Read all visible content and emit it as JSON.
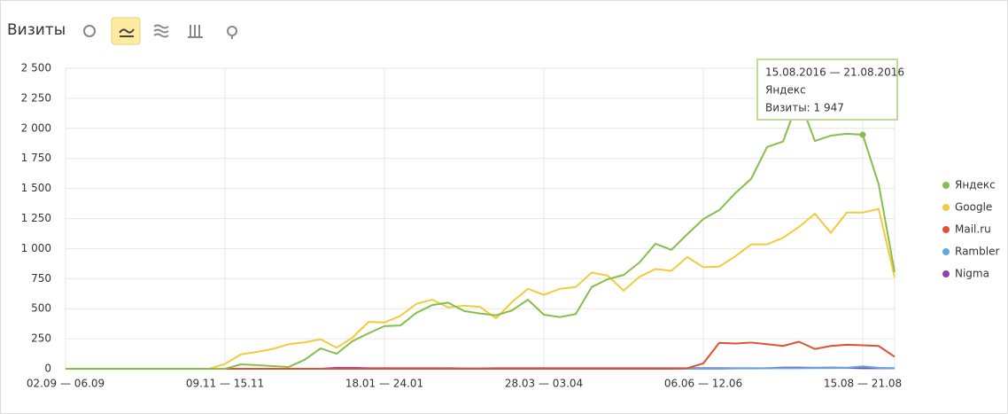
{
  "chart_data": {
    "type": "line",
    "title": "Визиты",
    "categories": [
      "02.09 — 06.09",
      null,
      null,
      null,
      null,
      null,
      null,
      null,
      null,
      null,
      "09.11 — 15.11",
      null,
      null,
      null,
      null,
      null,
      null,
      null,
      null,
      null,
      "18.01 — 24.01",
      null,
      null,
      null,
      null,
      null,
      null,
      null,
      null,
      null,
      "28.03 — 03.04",
      null,
      null,
      null,
      null,
      null,
      null,
      null,
      null,
      null,
      "06.06 — 12.06",
      null,
      null,
      null,
      null,
      null,
      null,
      null,
      null,
      null,
      "15.08 — 21.08",
      null,
      null
    ],
    "ylim": [
      0,
      2500
    ],
    "yticks": [
      0,
      250,
      500,
      750,
      {
        "value": 1000,
        "label": "1 000"
      },
      {
        "value": 1250,
        "label": "1 250"
      },
      {
        "value": 1500,
        "label": "1 500"
      },
      {
        "value": 1750,
        "label": "1 750"
      },
      {
        "value": 2000,
        "label": "2 000"
      },
      {
        "value": 2250,
        "label": "2 250"
      },
      {
        "value": 2500,
        "label": "2 500"
      }
    ],
    "grid": true,
    "legend": "right",
    "series": [
      {
        "name": "Яндекс",
        "color": "#86bf4b",
        "values": [
          0,
          0,
          0,
          0,
          0,
          0,
          0,
          0,
          0,
          0,
          0,
          37,
          30,
          22,
          15,
          75,
          170,
          125,
          230,
          295,
          355,
          360,
          465,
          530,
          550,
          480,
          460,
          445,
          485,
          575,
          450,
          430,
          455,
          680,
          745,
          780,
          885,
          1040,
          990,
          1120,
          1245,
          1320,
          1460,
          1580,
          1845,
          1890,
          2250,
          1895,
          1940,
          1955,
          1947,
          1535,
          805
        ]
      },
      {
        "name": "Google",
        "color": "#f2cc3c",
        "values": [
          0,
          0,
          0,
          0,
          0,
          0,
          0,
          0,
          0,
          0,
          40,
          120,
          140,
          165,
          205,
          220,
          245,
          175,
          260,
          390,
          385,
          440,
          540,
          575,
          510,
          525,
          515,
          420,
          555,
          665,
          615,
          665,
          680,
          800,
          775,
          650,
          765,
          830,
          815,
          930,
          845,
          850,
          935,
          1035,
          1035,
          1090,
          1180,
          1290,
          1130,
          1300,
          1300,
          1330,
          760
        ]
      },
      {
        "name": "Mail.ru",
        "color": "#e0522f",
        "values": [
          0,
          0,
          0,
          0,
          0,
          0,
          0,
          0,
          0,
          0,
          0,
          0,
          0,
          0,
          0,
          0,
          0,
          0,
          0,
          0,
          0,
          0,
          0,
          0,
          0,
          0,
          0,
          0,
          0,
          0,
          0,
          0,
          0,
          0,
          0,
          0,
          0,
          0,
          0,
          5,
          45,
          216,
          210,
          218,
          205,
          190,
          225,
          165,
          190,
          200,
          195,
          190,
          100
        ]
      },
      {
        "name": "Rambler",
        "color": "#63a9dc",
        "values": [
          0,
          0,
          0,
          0,
          0,
          0,
          0,
          0,
          0,
          0,
          0,
          0,
          0,
          0,
          0,
          0,
          0,
          0,
          0,
          0,
          0,
          0,
          0,
          0,
          0,
          0,
          0,
          0,
          0,
          0,
          0,
          0,
          0,
          0,
          0,
          0,
          0,
          0,
          0,
          0,
          0,
          0,
          3,
          3,
          5,
          5,
          5,
          6,
          6,
          8,
          20,
          8,
          5
        ]
      },
      {
        "name": "Nigma",
        "color": "#8e44ad",
        "values": [
          0,
          0,
          0,
          0,
          0,
          0,
          0,
          0,
          0,
          0,
          0,
          0,
          0,
          0,
          0,
          0,
          0,
          8,
          8,
          5,
          5,
          5,
          5,
          5,
          5,
          3,
          3,
          5,
          5,
          5,
          5,
          5,
          5,
          5,
          5,
          5,
          5,
          5,
          5,
          5,
          5,
          5,
          5,
          5,
          5,
          10,
          10,
          8,
          10,
          8,
          5,
          5,
          5
        ]
      }
    ],
    "tooltip": {
      "date": "15.08.2016 — 21.08.2016",
      "series": "Яндекс",
      "text": "Визиты: 1 947",
      "point": 50
    }
  }
}
